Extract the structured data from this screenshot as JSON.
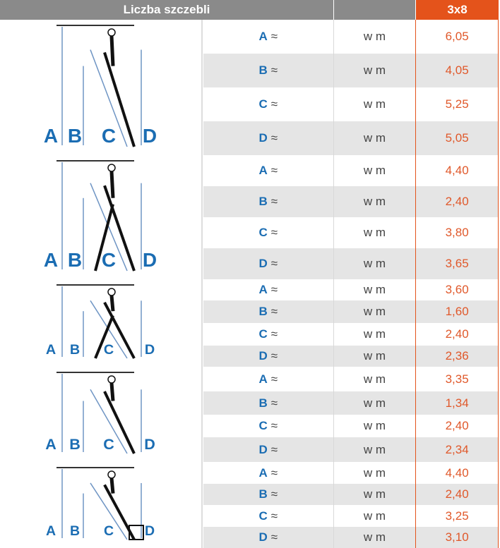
{
  "header": {
    "title": "Liczba szczebli",
    "unit_col": "",
    "model": "3x8"
  },
  "colors": {
    "header_gray": "#8a8a8a",
    "accent_orange": "#e4531b",
    "label_blue": "#1b6db3",
    "value_orange": "#e0582a"
  },
  "approx": "≈",
  "unit": "w m",
  "diagram_labels": [
    "A",
    "B",
    "C",
    "D"
  ],
  "groups": [
    {
      "usage": "leaning-ladder",
      "rows": [
        {
          "label": "A",
          "value": "6,05"
        },
        {
          "label": "B",
          "value": "4,05"
        },
        {
          "label": "C",
          "value": "5,25"
        },
        {
          "label": "D",
          "value": "5,05"
        }
      ]
    },
    {
      "usage": "a-frame-with-top-section",
      "rows": [
        {
          "label": "A",
          "value": "4,40"
        },
        {
          "label": "B",
          "value": "2,40"
        },
        {
          "label": "C",
          "value": "3,80"
        },
        {
          "label": "D",
          "value": "3,65"
        }
      ]
    },
    {
      "usage": "a-frame",
      "rows": [
        {
          "label": "A",
          "value": "3,60"
        },
        {
          "label": "B",
          "value": "1,60"
        },
        {
          "label": "C",
          "value": "2,40"
        },
        {
          "label": "D",
          "value": "2,36"
        }
      ]
    },
    {
      "usage": "single-section-leaning",
      "rows": [
        {
          "label": "A",
          "value": "3,35"
        },
        {
          "label": "B",
          "value": "1,34"
        },
        {
          "label": "C",
          "value": "2,40"
        },
        {
          "label": "D",
          "value": "2,34"
        }
      ]
    },
    {
      "usage": "stairs-ladder",
      "rows": [
        {
          "label": "A",
          "value": "4,40"
        },
        {
          "label": "B",
          "value": "2,40"
        },
        {
          "label": "C",
          "value": "3,25"
        },
        {
          "label": "D",
          "value": "3,10"
        }
      ]
    }
  ]
}
